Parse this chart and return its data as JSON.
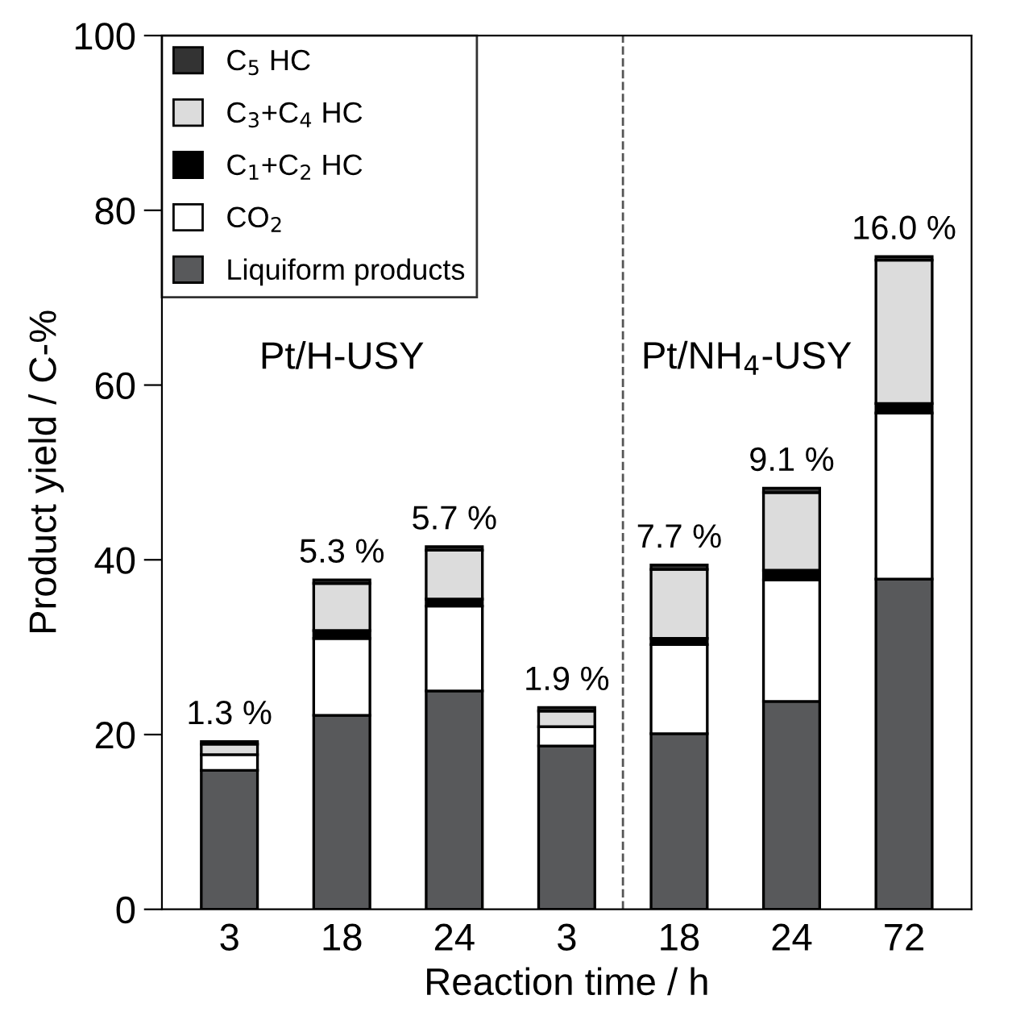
{
  "chart_data": {
    "type": "bar",
    "stacked": true,
    "xlabel": "Reaction time / h",
    "ylabel": "Product yield / C-%",
    "categories": [
      "3",
      "18",
      "24",
      "3",
      "18",
      "24",
      "72"
    ],
    "series": [
      {
        "name": "Liquiform products",
        "color": "#58595b",
        "values": [
          15.9,
          22.2,
          25.0,
          18.7,
          20.1,
          23.8,
          37.8
        ]
      },
      {
        "name": "CO$_{2}$",
        "color": "#ffffff",
        "values": [
          1.8,
          8.8,
          9.7,
          2.2,
          10.2,
          13.9,
          19.0
        ]
      },
      {
        "name": "C$_{1}$+C$_{2}$ HC",
        "color": "#000000",
        "values": [
          null,
          0.9,
          0.8,
          null,
          0.7,
          1.1,
          1.1
        ]
      },
      {
        "name": "C$_{3}$+C$_{4}$ HC",
        "color": "#dcdcdc",
        "values": [
          1.2,
          5.4,
          5.6,
          1.8,
          7.9,
          8.9,
          16.4
        ]
      },
      {
        "name": "C$_{5}$ HC",
        "color": "#333333",
        "values": [
          0.3,
          0.4,
          0.4,
          0.4,
          0.5,
          0.5,
          0.4
        ]
      }
    ],
    "ylim": [
      0,
      100
    ],
    "yticks": [
      0,
      20,
      40,
      60,
      80,
      100
    ],
    "annotations": [
      "1.3 %",
      "5.3 %",
      "5.7 %",
      "1.9 %",
      "7.7 %",
      "9.1 %",
      "16.0 %",
      "Pt/H-USY",
      "Pt/NH$_{4}$-USY"
    ],
    "legend": "top left",
    "grid": false
  }
}
